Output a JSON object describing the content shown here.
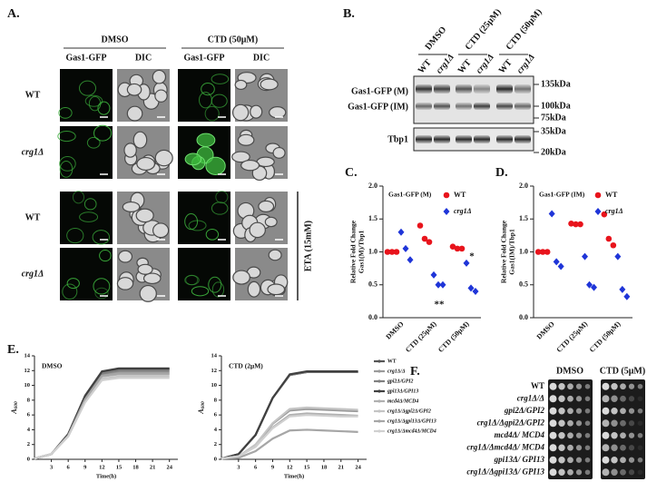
{
  "panelA": {
    "label": "A.",
    "conditions": [
      "DMSO",
      "CTD (50μM)"
    ],
    "channels": [
      "Gas1-GFP",
      "DIC",
      "Gas1-GFP",
      "DIC"
    ],
    "rows": [
      "WT",
      "crg1Δ",
      "WT",
      "crg1Δ"
    ],
    "treatment": "ETA (15mM)"
  },
  "panelB": {
    "label": "B.",
    "conditions": [
      "DMSO",
      "CTD (25μM)",
      "CTD (50μM)"
    ],
    "lanes": [
      "WT",
      "crg1Δ",
      "WT",
      "crg1Δ",
      "WT",
      "crg1Δ"
    ],
    "bands": [
      "Gas1-GFP (M)",
      "Gas1-GFP (IM)",
      "Tbp1"
    ],
    "markers": [
      "135kDa",
      "100kDa",
      "75kDa",
      "35kDa",
      "20kDa"
    ]
  },
  "chart_data": [
    {
      "type": "scatter",
      "panel": "C.",
      "title": "Gas1-GFP (M)",
      "ylabel": [
        "Relative Fold Change",
        "Gas1(M)/Tbp1"
      ],
      "categories": [
        "DMSO",
        "CTD (25μM)",
        "CTD (50μM)"
      ],
      "series": [
        {
          "name": "WT",
          "color": "#e8141c",
          "values": [
            [
              1.0,
              1.0,
              1.0
            ],
            [
              1.4,
              1.2,
              1.15
            ],
            [
              1.08,
              1.05,
              1.05
            ]
          ]
        },
        {
          "name": "crg1Δ",
          "color": "#1f35d8",
          "values": [
            [
              1.3,
              1.05,
              0.88
            ],
            [
              0.65,
              0.5,
              0.5
            ],
            [
              0.83,
              0.45,
              0.4
            ]
          ]
        }
      ],
      "ylim": [
        0,
        2
      ],
      "yticks": [
        {
          "value": 0,
          "label": "0.0"
        },
        0.5,
        {
          "value": 1,
          "label": "1.0"
        },
        1.5,
        {
          "value": 2,
          "label": "2.0"
        }
      ],
      "annotations": [
        "**",
        "*"
      ]
    },
    {
      "type": "scatter",
      "panel": "D.",
      "title": "Gas1-GFP (IM)",
      "ylabel": [
        "Relative Fold Change",
        "Gas1(IM)/Tbp1"
      ],
      "categories": [
        "DMSO",
        "CTD (25μM)",
        "CTD (50μM)"
      ],
      "series": [
        {
          "name": "WT",
          "color": "#e8141c",
          "values": [
            [
              1.0,
              1.0,
              1.0
            ],
            [
              1.43,
              1.42,
              1.42
            ],
            [
              1.57,
              1.2,
              1.1
            ]
          ]
        },
        {
          "name": "crg1Δ",
          "color": "#1f35d8",
          "values": [
            [
              1.58,
              0.85,
              0.78
            ],
            [
              0.93,
              0.5,
              0.46
            ],
            [
              0.93,
              0.43,
              0.32
            ]
          ]
        }
      ],
      "ylim": [
        0,
        2
      ],
      "yticks": [
        {
          "value": 0,
          "label": "0.0"
        },
        0.5,
        {
          "value": 1,
          "label": "1.0"
        },
        1.5,
        {
          "value": 2,
          "label": "2.0"
        }
      ]
    },
    {
      "type": "line",
      "panel": "E.",
      "title": "DMSO",
      "xlabel": "Time(h)",
      "ylabel": {
        "main": "A",
        "sub": "600"
      },
      "x": [
        0,
        3,
        6,
        9,
        12,
        15,
        18,
        21,
        24
      ],
      "xlim": [
        0,
        25.5
      ],
      "xticks": [
        3,
        6,
        9,
        12,
        15,
        18,
        21,
        24
      ],
      "ylim": [
        0,
        14
      ],
      "yticks": [
        0,
        2,
        4,
        6,
        8,
        10,
        12,
        14
      ],
      "series": [
        {
          "color": "#555555",
          "values": [
            0.1,
            0.7,
            3.4,
            8.5,
            11.8,
            12.2,
            12.2,
            12.2,
            12.2
          ]
        },
        {
          "color": "#9a9a9a",
          "values": [
            0.1,
            0.7,
            3.3,
            8.3,
            11.4,
            11.8,
            11.8,
            11.8,
            11.8
          ]
        },
        {
          "color": "#7f7f7f",
          "values": [
            0.1,
            0.7,
            3.4,
            8.4,
            11.6,
            12.0,
            12.0,
            12.0,
            12.0
          ]
        },
        {
          "color": "#404040",
          "values": [
            0.1,
            0.7,
            3.4,
            8.6,
            11.9,
            12.3,
            12.3,
            12.3,
            12.3
          ]
        },
        {
          "color": "#b0b0b0",
          "values": [
            0.1,
            0.7,
            3.2,
            8.1,
            11.2,
            11.5,
            11.5,
            11.5,
            11.5
          ]
        },
        {
          "color": "#c4c4c4",
          "values": [
            0.1,
            0.7,
            3.1,
            7.8,
            10.9,
            11.2,
            11.2,
            11.2,
            11.2
          ]
        },
        {
          "color": "#a6a6a6",
          "values": [
            0.1,
            0.7,
            3.2,
            8.1,
            11.3,
            11.6,
            11.6,
            11.6,
            11.6
          ]
        },
        {
          "color": "#d0d0d0",
          "values": [
            0.1,
            0.7,
            3.1,
            7.7,
            10.7,
            11.0,
            11.0,
            11.0,
            11.0
          ]
        }
      ]
    },
    {
      "type": "line",
      "title": "CTD (2μM)",
      "xlabel": "Time(h)",
      "ylabel": {
        "main": "A",
        "sub": "600"
      },
      "x": [
        0,
        3,
        6,
        9,
        12,
        15,
        18,
        21,
        24
      ],
      "xlim": [
        0,
        25.5
      ],
      "xticks": [
        3,
        6,
        9,
        12,
        15,
        18,
        21,
        24
      ],
      "ylim": [
        0,
        14
      ],
      "yticks": [
        0,
        2,
        4,
        6,
        8,
        10,
        12,
        14
      ],
      "series": [
        {
          "name": "WT",
          "color": "#555555",
          "values": [
            0.1,
            0.7,
            3.3,
            8.3,
            11.4,
            11.8,
            11.8,
            11.8,
            11.8
          ]
        },
        {
          "name": "crg1Δ/Δ",
          "color": "#9a9a9a",
          "values": [
            0.1,
            0.4,
            1.9,
            4.8,
            6.6,
            6.8,
            6.7,
            6.6,
            6.5
          ]
        },
        {
          "name": "gpi2Δ/GPI2",
          "color": "#7f7f7f",
          "values": [
            0.1,
            0.7,
            3.3,
            8.3,
            11.4,
            11.8,
            11.8,
            11.8,
            11.8
          ]
        },
        {
          "name": "gpi13Δ/GPI13",
          "color": "#404040",
          "values": [
            0.1,
            0.7,
            3.3,
            8.3,
            11.5,
            11.9,
            11.9,
            11.9,
            11.9
          ]
        },
        {
          "name": "mcd4Δ/MCD4",
          "color": "#b0b0b0",
          "values": [
            0.1,
            0.4,
            1.7,
            4.3,
            6.0,
            6.2,
            6.1,
            6.0,
            5.9
          ]
        },
        {
          "name": "crg1Δ/Δgpi2Δ/GPI2",
          "color": "#c4c4c4",
          "values": [
            0.1,
            0.4,
            2.0,
            4.9,
            6.8,
            7.0,
            6.9,
            6.8,
            6.7
          ]
        },
        {
          "name": "crg1Δ/Δgpi13Δ/GPI13",
          "color": "#a6a6a6",
          "values": [
            0.1,
            0.2,
            1.1,
            2.8,
            3.9,
            4.0,
            3.9,
            3.8,
            3.7
          ]
        },
        {
          "name": "crg1Δ/Δmcd4Δ/MCD4",
          "color": "#d0d0d0",
          "values": [
            0.1,
            0.4,
            1.7,
            4.2,
            5.8,
            6.0,
            5.9,
            5.8,
            5.8
          ]
        }
      ]
    }
  ],
  "panelF": {
    "label": "F.",
    "conditions": [
      "DMSO",
      "CTD (5μM)"
    ],
    "strains": [
      "WT",
      "crg1Δ/Δ",
      "gpi2Δ/GPI2",
      "crg1Δ/Δgpi2Δ/GPI2",
      "mcd4Δ/ MCD4",
      "crg1Δ/Δmcd4Δ/ MCD4",
      "gpi13Δ/ GPI13",
      "crg1Δ/Δgpi13Δ/ GPI13"
    ]
  }
}
